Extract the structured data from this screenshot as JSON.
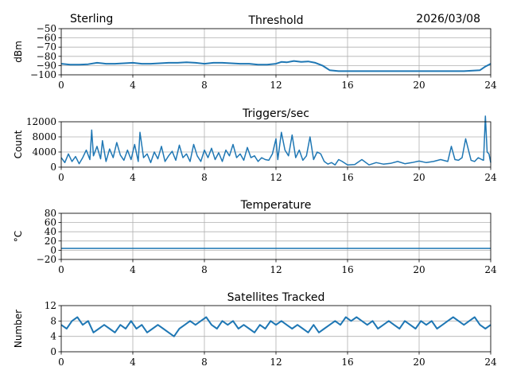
{
  "header": {
    "location": "Sterling",
    "date": "2026/03/08"
  },
  "colors": {
    "series": "#1f77b4",
    "grid": "#b0b0b0"
  },
  "chart_data": [
    {
      "type": "line",
      "title": "Threshold",
      "xlabel": "",
      "ylabel": "dBm",
      "xlim": [
        0,
        24
      ],
      "ylim": [
        -100,
        -50
      ],
      "xticks": [
        0,
        4,
        8,
        12,
        16,
        20,
        24
      ],
      "yticks": [
        -100,
        -90,
        -80,
        -70,
        -60,
        -50
      ],
      "ytick_labels": [
        "−100",
        "−90",
        "−80",
        "−70",
        "−60",
        "−50"
      ],
      "grid": true,
      "series": [
        {
          "name": "threshold",
          "x": [
            0,
            0.5,
            1,
            1.5,
            2,
            2.5,
            3,
            3.5,
            4,
            4.5,
            5,
            5.5,
            6,
            6.5,
            7,
            7.5,
            8,
            8.5,
            9,
            9.5,
            10,
            10.5,
            11,
            11.5,
            12,
            12.3,
            12.6,
            13,
            13.4,
            13.8,
            14.2,
            14.6,
            15,
            15.5,
            16,
            17,
            18,
            19,
            20,
            21,
            22,
            22.5,
            23,
            23.4,
            23.7,
            24
          ],
          "values": [
            -88,
            -89,
            -89,
            -88.5,
            -87,
            -88,
            -88,
            -87.5,
            -87,
            -88,
            -88,
            -87.5,
            -87,
            -87,
            -86.5,
            -87,
            -88,
            -87,
            -87,
            -87.5,
            -88,
            -88,
            -89,
            -89,
            -88,
            -86,
            -86.5,
            -85,
            -86,
            -85.5,
            -87,
            -90,
            -95,
            -96,
            -96,
            -96,
            -96,
            -96,
            -96,
            -96,
            -96,
            -96,
            -95.5,
            -95,
            -91,
            -88
          ]
        }
      ]
    },
    {
      "type": "line",
      "title": "Triggers/sec",
      "xlabel": "",
      "ylabel": "Count",
      "xlim": [
        0,
        24
      ],
      "ylim": [
        0,
        12000
      ],
      "xticks": [
        0,
        4,
        8,
        12,
        16,
        20,
        24
      ],
      "yticks": [
        0,
        4000,
        8000,
        12000
      ],
      "ytick_labels": [
        "0",
        "4000",
        "8000",
        "12000"
      ],
      "grid": true,
      "series": [
        {
          "name": "triggers",
          "x": [
            0,
            0.2,
            0.4,
            0.6,
            0.8,
            1.0,
            1.2,
            1.4,
            1.6,
            1.7,
            1.8,
            2.0,
            2.2,
            2.3,
            2.5,
            2.7,
            2.9,
            3.1,
            3.3,
            3.5,
            3.7,
            3.9,
            4.1,
            4.3,
            4.4,
            4.6,
            4.8,
            5.0,
            5.2,
            5.4,
            5.6,
            5.8,
            6.0,
            6.2,
            6.4,
            6.6,
            6.8,
            7.0,
            7.2,
            7.4,
            7.6,
            7.8,
            8.0,
            8.2,
            8.4,
            8.6,
            8.8,
            9.0,
            9.2,
            9.4,
            9.6,
            9.8,
            10.0,
            10.2,
            10.4,
            10.6,
            10.8,
            11.0,
            11.2,
            11.4,
            11.6,
            11.8,
            12.0,
            12.1,
            12.3,
            12.5,
            12.7,
            12.9,
            13.1,
            13.3,
            13.5,
            13.7,
            13.9,
            14.1,
            14.3,
            14.5,
            14.7,
            14.9,
            15.1,
            15.3,
            15.5,
            15.7,
            16.0,
            16.4,
            16.8,
            17.2,
            17.6,
            18.0,
            18.4,
            18.8,
            19.2,
            19.6,
            20.0,
            20.4,
            20.8,
            21.2,
            21.6,
            21.8,
            22.0,
            22.2,
            22.4,
            22.6,
            22.9,
            23.1,
            23.3,
            23.5,
            23.6,
            23.7,
            23.8,
            23.9,
            24.0
          ],
          "values": [
            2500,
            1200,
            3500,
            1500,
            2800,
            900,
            2500,
            4500,
            2000,
            9800,
            3000,
            5500,
            2200,
            7000,
            1500,
            4800,
            2500,
            6500,
            3200,
            1800,
            4500,
            2000,
            6000,
            1500,
            9200,
            2500,
            3500,
            1200,
            4000,
            2200,
            5500,
            1500,
            3000,
            4200,
            1800,
            5800,
            2500,
            3500,
            1500,
            6000,
            3000,
            1500,
            4500,
            2500,
            5000,
            2000,
            3800,
            1500,
            4500,
            3000,
            6000,
            2500,
            3500,
            1800,
            5200,
            2500,
            3000,
            1500,
            2500,
            2000,
            1800,
            3500,
            7500,
            2000,
            9200,
            4500,
            3000,
            8500,
            2500,
            4500,
            1800,
            3000,
            8000,
            2000,
            4000,
            3500,
            1500,
            800,
            1200,
            600,
            2000,
            1500,
            600,
            700,
            2000,
            600,
            1200,
            800,
            1000,
            1500,
            900,
            1200,
            1600,
            1200,
            1500,
            2000,
            1500,
            5500,
            2000,
            1800,
            2500,
            7500,
            1800,
            1500,
            2500,
            2000,
            1800,
            13500,
            4000,
            3500,
            1200
          ]
        }
      ]
    },
    {
      "type": "line",
      "title": "Temperature",
      "xlabel": "",
      "ylabel": "°C",
      "xlim": [
        0,
        24
      ],
      "ylim": [
        -20,
        80
      ],
      "xticks": [
        0,
        4,
        8,
        12,
        16,
        20,
        24
      ],
      "yticks": [
        -20,
        0,
        20,
        40,
        60,
        80
      ],
      "ytick_labels": [
        "−20",
        "0",
        "20",
        "40",
        "60",
        "80"
      ],
      "grid": true,
      "series": [
        {
          "name": "temperature",
          "x": [
            0,
            2,
            4,
            6,
            8,
            10,
            12,
            14,
            16,
            18,
            20,
            22,
            24
          ],
          "values": [
            4,
            4,
            4,
            4,
            4,
            4,
            4,
            4,
            4,
            4,
            4,
            4,
            4
          ]
        }
      ]
    },
    {
      "type": "line",
      "title": "Satellites Tracked",
      "xlabel": "",
      "ylabel": "Number",
      "xlim": [
        0,
        24
      ],
      "ylim": [
        0,
        12
      ],
      "xticks": [
        0,
        4,
        8,
        12,
        16,
        20,
        24
      ],
      "yticks": [
        0,
        4,
        8,
        12
      ],
      "ytick_labels": [
        "0",
        "4",
        "8",
        "12"
      ],
      "grid": true,
      "series": [
        {
          "name": "satellites",
          "x": [
            0,
            0.3,
            0.6,
            0.9,
            1.2,
            1.5,
            1.8,
            2.1,
            2.4,
            2.7,
            3.0,
            3.3,
            3.6,
            3.9,
            4.2,
            4.5,
            4.8,
            5.1,
            5.4,
            5.7,
            6.0,
            6.3,
            6.6,
            6.9,
            7.2,
            7.5,
            7.8,
            8.1,
            8.4,
            8.7,
            9.0,
            9.3,
            9.6,
            9.9,
            10.2,
            10.5,
            10.8,
            11.1,
            11.4,
            11.7,
            12.0,
            12.3,
            12.6,
            12.9,
            13.2,
            13.5,
            13.8,
            14.1,
            14.4,
            14.7,
            15.0,
            15.3,
            15.6,
            15.9,
            16.2,
            16.5,
            16.8,
            17.1,
            17.4,
            17.7,
            18.0,
            18.3,
            18.6,
            18.9,
            19.2,
            19.5,
            19.8,
            20.1,
            20.4,
            20.7,
            21.0,
            21.3,
            21.6,
            21.9,
            22.2,
            22.5,
            22.8,
            23.1,
            23.4,
            23.7,
            24.0
          ],
          "values": [
            7,
            6,
            8,
            9,
            7,
            8,
            5,
            6,
            7,
            6,
            5,
            7,
            6,
            8,
            6,
            7,
            5,
            6,
            7,
            6,
            5,
            4,
            6,
            7,
            8,
            7,
            8,
            9,
            7,
            6,
            8,
            7,
            8,
            6,
            7,
            6,
            5,
            7,
            6,
            8,
            7,
            8,
            7,
            6,
            7,
            6,
            5,
            7,
            5,
            6,
            7,
            8,
            7,
            9,
            8,
            9,
            8,
            7,
            8,
            6,
            7,
            8,
            7,
            6,
            8,
            7,
            6,
            8,
            7,
            8,
            6,
            7,
            8,
            9,
            8,
            7,
            8,
            9,
            7,
            6,
            7
          ]
        }
      ]
    }
  ]
}
